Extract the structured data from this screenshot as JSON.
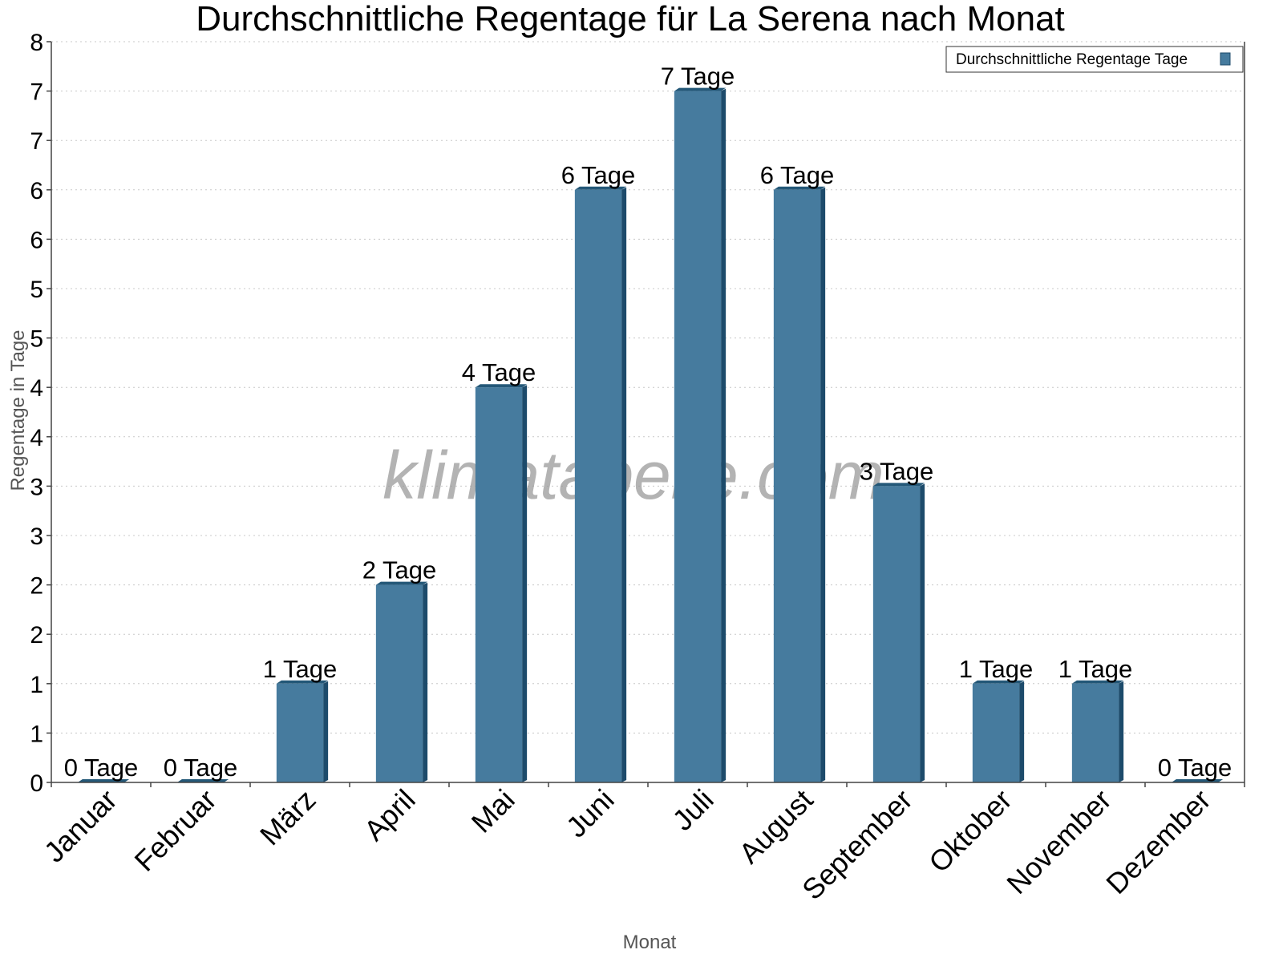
{
  "chart_data": {
    "type": "bar",
    "title": "Durchschnittliche Regentage für La Serena nach Monat",
    "xlabel": "Monat",
    "ylabel": "Regentage in Tage",
    "watermark": "klimatabelle.com",
    "categories": [
      "Januar",
      "Februar",
      "März",
      "April",
      "Mai",
      "Juni",
      "Juli",
      "August",
      "September",
      "Oktober",
      "November",
      "Dezember"
    ],
    "series": [
      {
        "name": "Durchschnittliche Regentage Tage",
        "values": [
          0,
          0,
          1,
          2,
          4,
          6,
          7,
          6,
          3,
          1,
          1,
          0
        ],
        "labels": [
          "0 Tage",
          "0 Tage",
          "1 Tage",
          "2 Tage",
          "4 Tage",
          "6 Tage",
          "7 Tage",
          "6 Tage",
          "3 Tage",
          "1 Tage",
          "1 Tage",
          "0 Tage"
        ]
      }
    ],
    "ylim": [
      0,
      7.5
    ],
    "yticks": [
      0,
      0.5,
      1,
      1.5,
      2,
      2.5,
      3,
      3.5,
      4,
      4.5,
      5,
      5.5,
      6,
      6.5,
      7,
      7.5
    ],
    "ytick_labels": [
      "0",
      "1",
      "1",
      "2",
      "2",
      "3",
      "3",
      "4",
      "4",
      "5",
      "5",
      "6",
      "6",
      "7",
      "7",
      "8"
    ],
    "grid": true,
    "legend_position": "top-right",
    "colors": {
      "bar": "#467b9e",
      "bar_side": "#1d4b6b",
      "bar_top": "#245878"
    }
  }
}
